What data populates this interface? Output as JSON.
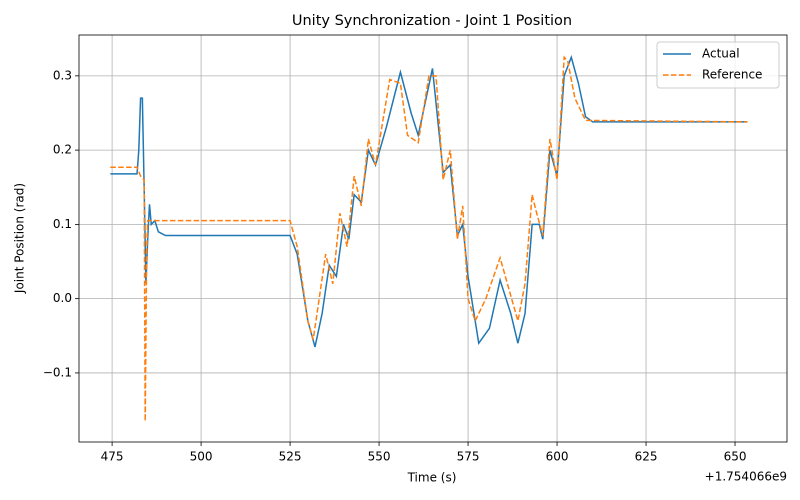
{
  "chart_data": {
    "type": "line",
    "title": "Unity Synchronization - Joint 1 Position",
    "xlabel": "Time (s)",
    "ylabel": "Joint Position (rad)",
    "offset_text": "+1.754066e9",
    "xlim": [
      465.7,
      664.6
    ],
    "ylim": [
      -0.193,
      0.355
    ],
    "xticks": [
      475,
      500,
      525,
      550,
      575,
      600,
      625,
      650
    ],
    "yticks": [
      {
        "value": -0.1,
        "label": "−0.1"
      },
      {
        "value": 0,
        "label": "0.0"
      },
      0.1,
      0.2,
      0.3
    ],
    "grid": true,
    "legend": "upper right",
    "series": [
      {
        "name": "Actual",
        "color": "#1f77b4",
        "style": "solid",
        "x": [
          474.5,
          482,
          482.5,
          483,
          483.5,
          484,
          484.5,
          485,
          485.5,
          486,
          487,
          488,
          490,
          525,
          527,
          530,
          532,
          534,
          536,
          538,
          540,
          541.5,
          543,
          545,
          547,
          549,
          552,
          556,
          559,
          561,
          565,
          568,
          570,
          572,
          573.5,
          575,
          578,
          581,
          584,
          587,
          589,
          591,
          593,
          595,
          596,
          598,
          600,
          602,
          604,
          606,
          608,
          610,
          653.5
        ],
        "values": [
          0.168,
          0.168,
          0.2,
          0.27,
          0.27,
          0.15,
          0.02,
          0.08,
          0.127,
          0.1,
          0.105,
          0.09,
          0.085,
          0.085,
          0.06,
          -0.03,
          -0.065,
          -0.02,
          0.045,
          0.03,
          0.1,
          0.08,
          0.14,
          0.13,
          0.2,
          0.18,
          0.23,
          0.305,
          0.25,
          0.22,
          0.31,
          0.17,
          0.18,
          0.085,
          0.1,
          0.03,
          -0.06,
          -0.04,
          0.025,
          -0.02,
          -0.06,
          -0.02,
          0.1,
          0.1,
          0.08,
          0.2,
          0.165,
          0.3,
          0.325,
          0.29,
          0.245,
          0.238,
          0.238
        ]
      },
      {
        "name": "Reference",
        "color": "#ff7f0e",
        "style": "dashed",
        "x": [
          474.5,
          482,
          483,
          484,
          484.3,
          484.7,
          485,
          490,
          525,
          527,
          530,
          531.5,
          535,
          537,
          539,
          541,
          543,
          545,
          547,
          549,
          553,
          556,
          558,
          561,
          564,
          566,
          568,
          570,
          572,
          573.5,
          575,
          577,
          580,
          584,
          589,
          591,
          593,
          594,
          596,
          598,
          600,
          602,
          603,
          605,
          608,
          653.5
        ],
        "values": [
          0.177,
          0.177,
          0.165,
          0.16,
          -0.165,
          0.06,
          0.105,
          0.105,
          0.105,
          0.07,
          -0.03,
          -0.055,
          0.06,
          0.02,
          0.115,
          0.07,
          0.165,
          0.125,
          0.215,
          0.18,
          0.295,
          0.29,
          0.22,
          0.21,
          0.3,
          0.3,
          0.16,
          0.2,
          0.08,
          0.125,
          0,
          -0.03,
          0,
          0.055,
          -0.03,
          0.02,
          0.14,
          0.12,
          0.085,
          0.215,
          0.16,
          0.325,
          0.32,
          0.27,
          0.24,
          0.238
        ]
      }
    ]
  }
}
